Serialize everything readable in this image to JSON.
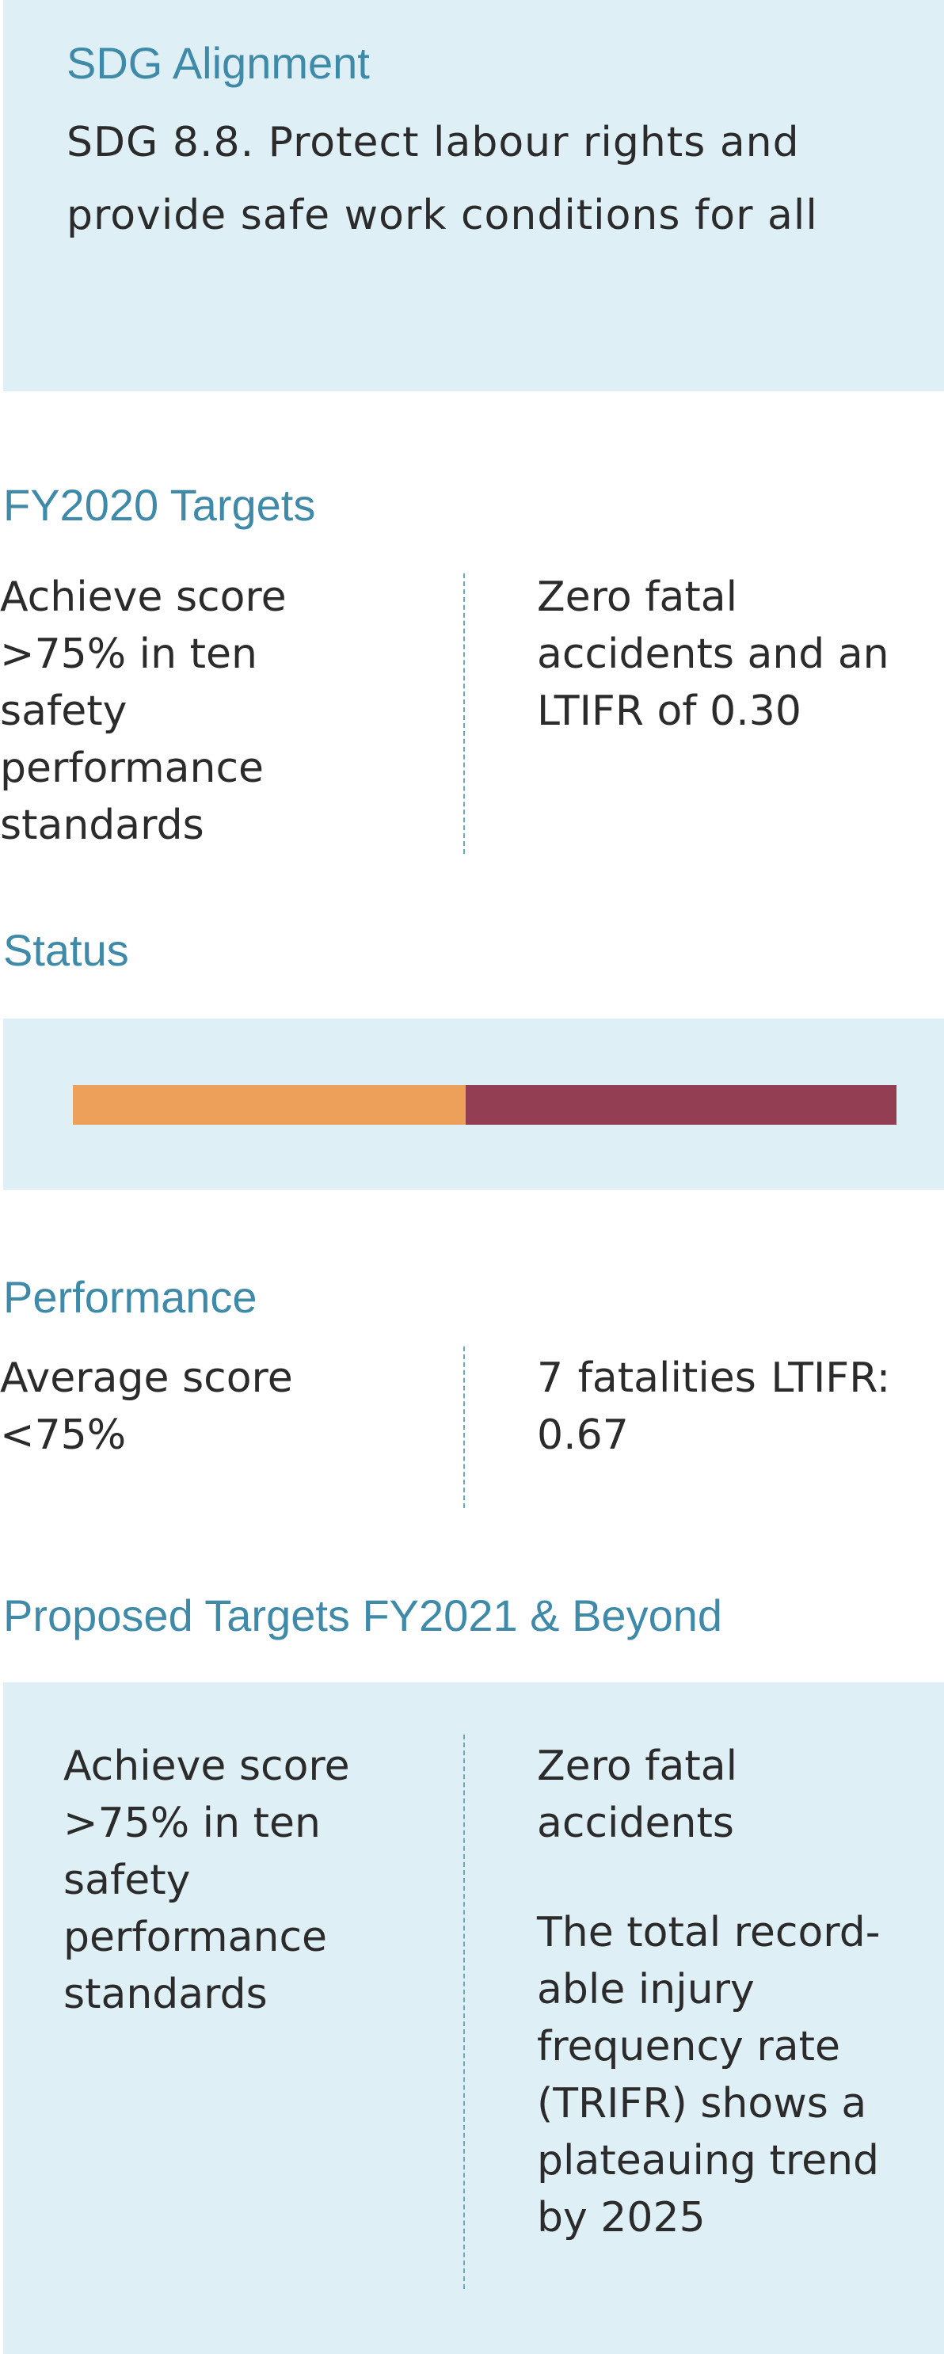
{
  "sdg": {
    "heading": "SDG Alignment",
    "text": "SDG 8.8. Protect labour rights and provide safe work conditions for all"
  },
  "targets": {
    "heading": "FY2020 Targets",
    "left": "Achieve score >75% in ten safety performance standards",
    "right": "Zero fatal accidents and an LTIFR of 0.30"
  },
  "status": {
    "heading": "Status",
    "bar": {
      "segments": [
        {
          "share": 0.4765,
          "color": "#eda05a"
        },
        {
          "share": 0.5235,
          "color": "#943e53"
        }
      ]
    }
  },
  "performance": {
    "heading": "Performance",
    "left": "Average score <75%",
    "right": "7 fatalities  LTIFR: 0.67"
  },
  "proposed": {
    "heading": "Proposed Targets FY2021 & Beyond",
    "left": "Achieve score >75% in ten safety performance standards",
    "right_1": "Zero fatal accidents",
    "right_2": "The total record-able injury frequency rate (TRIFR) shows a plateauing trend by 2025"
  },
  "colors": {
    "panel": "#deeff5",
    "heading": "#3f8aa8",
    "text": "#2b2b2b"
  }
}
